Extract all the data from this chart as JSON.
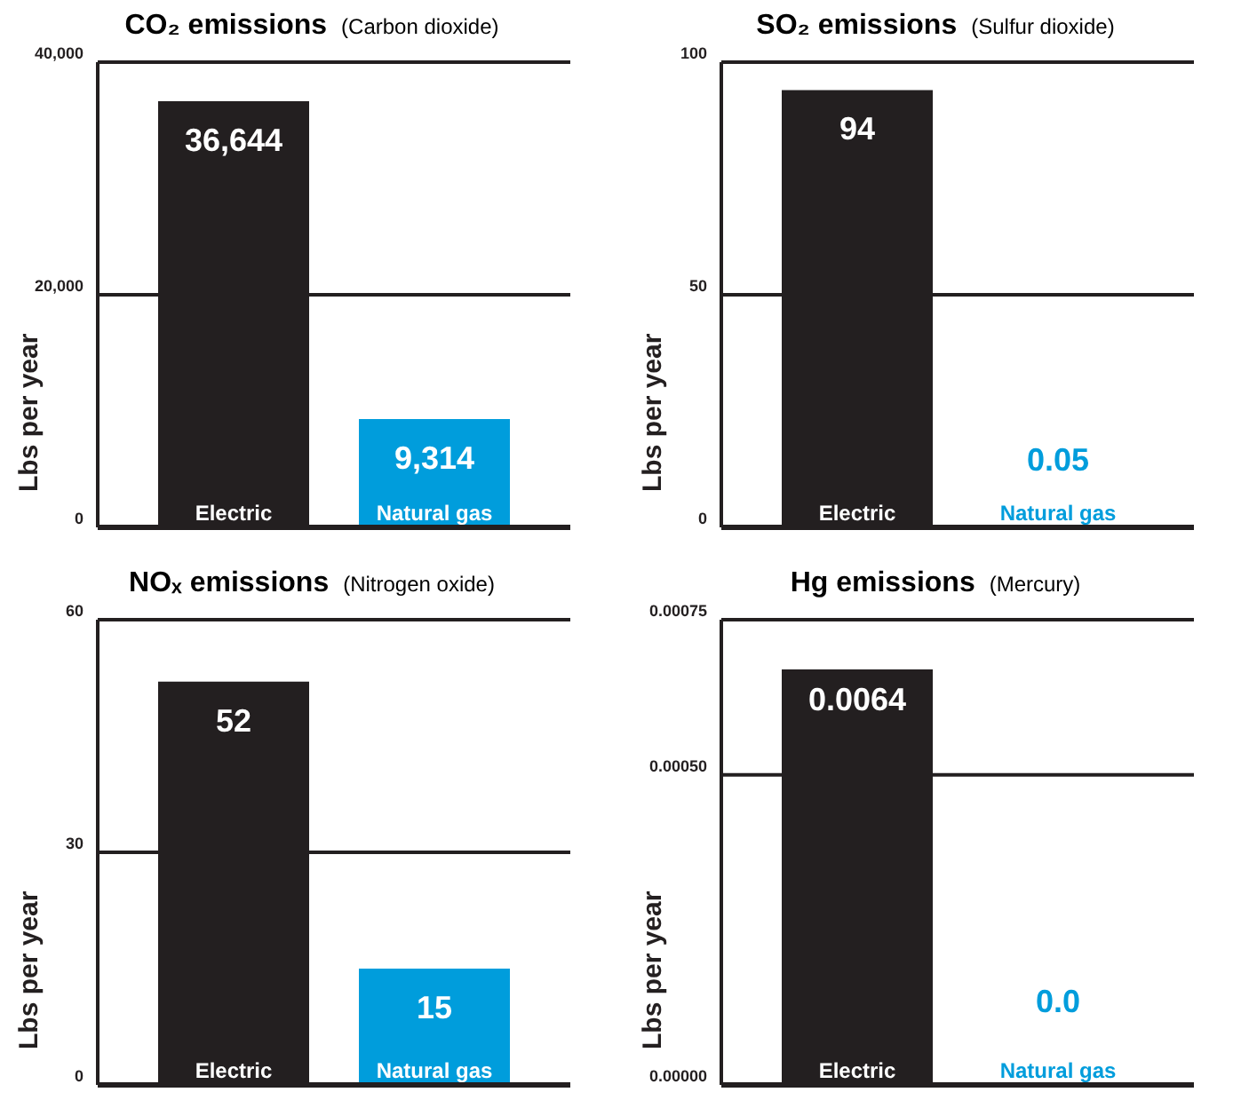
{
  "chart_data": [
    {
      "type": "bar",
      "title": "CO₂ emissions",
      "subtitle": "(Carbon dioxide)",
      "ylabel": "Lbs per year",
      "categories": [
        "Electric",
        "Natural gas"
      ],
      "values": [
        36644,
        9314
      ],
      "colors": [
        "#231f20",
        "#009ddc"
      ],
      "value_labels": [
        "36,644",
        "9,314"
      ],
      "ylim": [
        0,
        40000
      ],
      "yticks": [
        {
          "value": 0,
          "label": "0"
        },
        {
          "value": 20000,
          "label": "20,000"
        },
        {
          "value": 40000,
          "label": "40,000"
        }
      ],
      "grid": "y"
    },
    {
      "type": "bar",
      "title": "SO₂ emissions",
      "subtitle": "(Sulfur dioxide)",
      "ylabel": "Lbs per year",
      "categories": [
        "Electric",
        "Natural gas"
      ],
      "values": [
        94,
        0.05
      ],
      "colors": [
        "#231f20",
        "#009ddc"
      ],
      "value_labels": [
        "94",
        "0.05"
      ],
      "ylim": [
        0,
        100
      ],
      "yticks": [
        0,
        50,
        100
      ],
      "grid": "y"
    },
    {
      "type": "bar",
      "title": "NOₓ emissions",
      "subtitle": "(Nitrogen oxide)",
      "ylabel": "Lbs per year",
      "categories": [
        "Electric",
        "Natural gas"
      ],
      "values": [
        52,
        15
      ],
      "colors": [
        "#231f20",
        "#009ddc"
      ],
      "value_labels": [
        "52",
        "15"
      ],
      "ylim": [
        0,
        60
      ],
      "yticks": [
        0,
        30,
        60
      ],
      "grid": "y"
    },
    {
      "type": "bar",
      "title": "Hg emissions",
      "subtitle": "(Mercury)",
      "ylabel": "Lbs per year",
      "categories": [
        "Electric",
        "Natural gas"
      ],
      "values": [
        0.00067,
        0
      ],
      "colors": [
        "#231f20",
        "#009ddc"
      ],
      "annotations": [
        "0.0064",
        "0.0"
      ],
      "ylim": [
        0,
        0.00075
      ],
      "yticks": [
        {
          "value": 0,
          "label": "0.00000"
        },
        {
          "value": 0.0005,
          "label": "0.00050"
        },
        {
          "value": 0.00075,
          "label": "0.00075"
        }
      ],
      "grid": "y"
    }
  ]
}
